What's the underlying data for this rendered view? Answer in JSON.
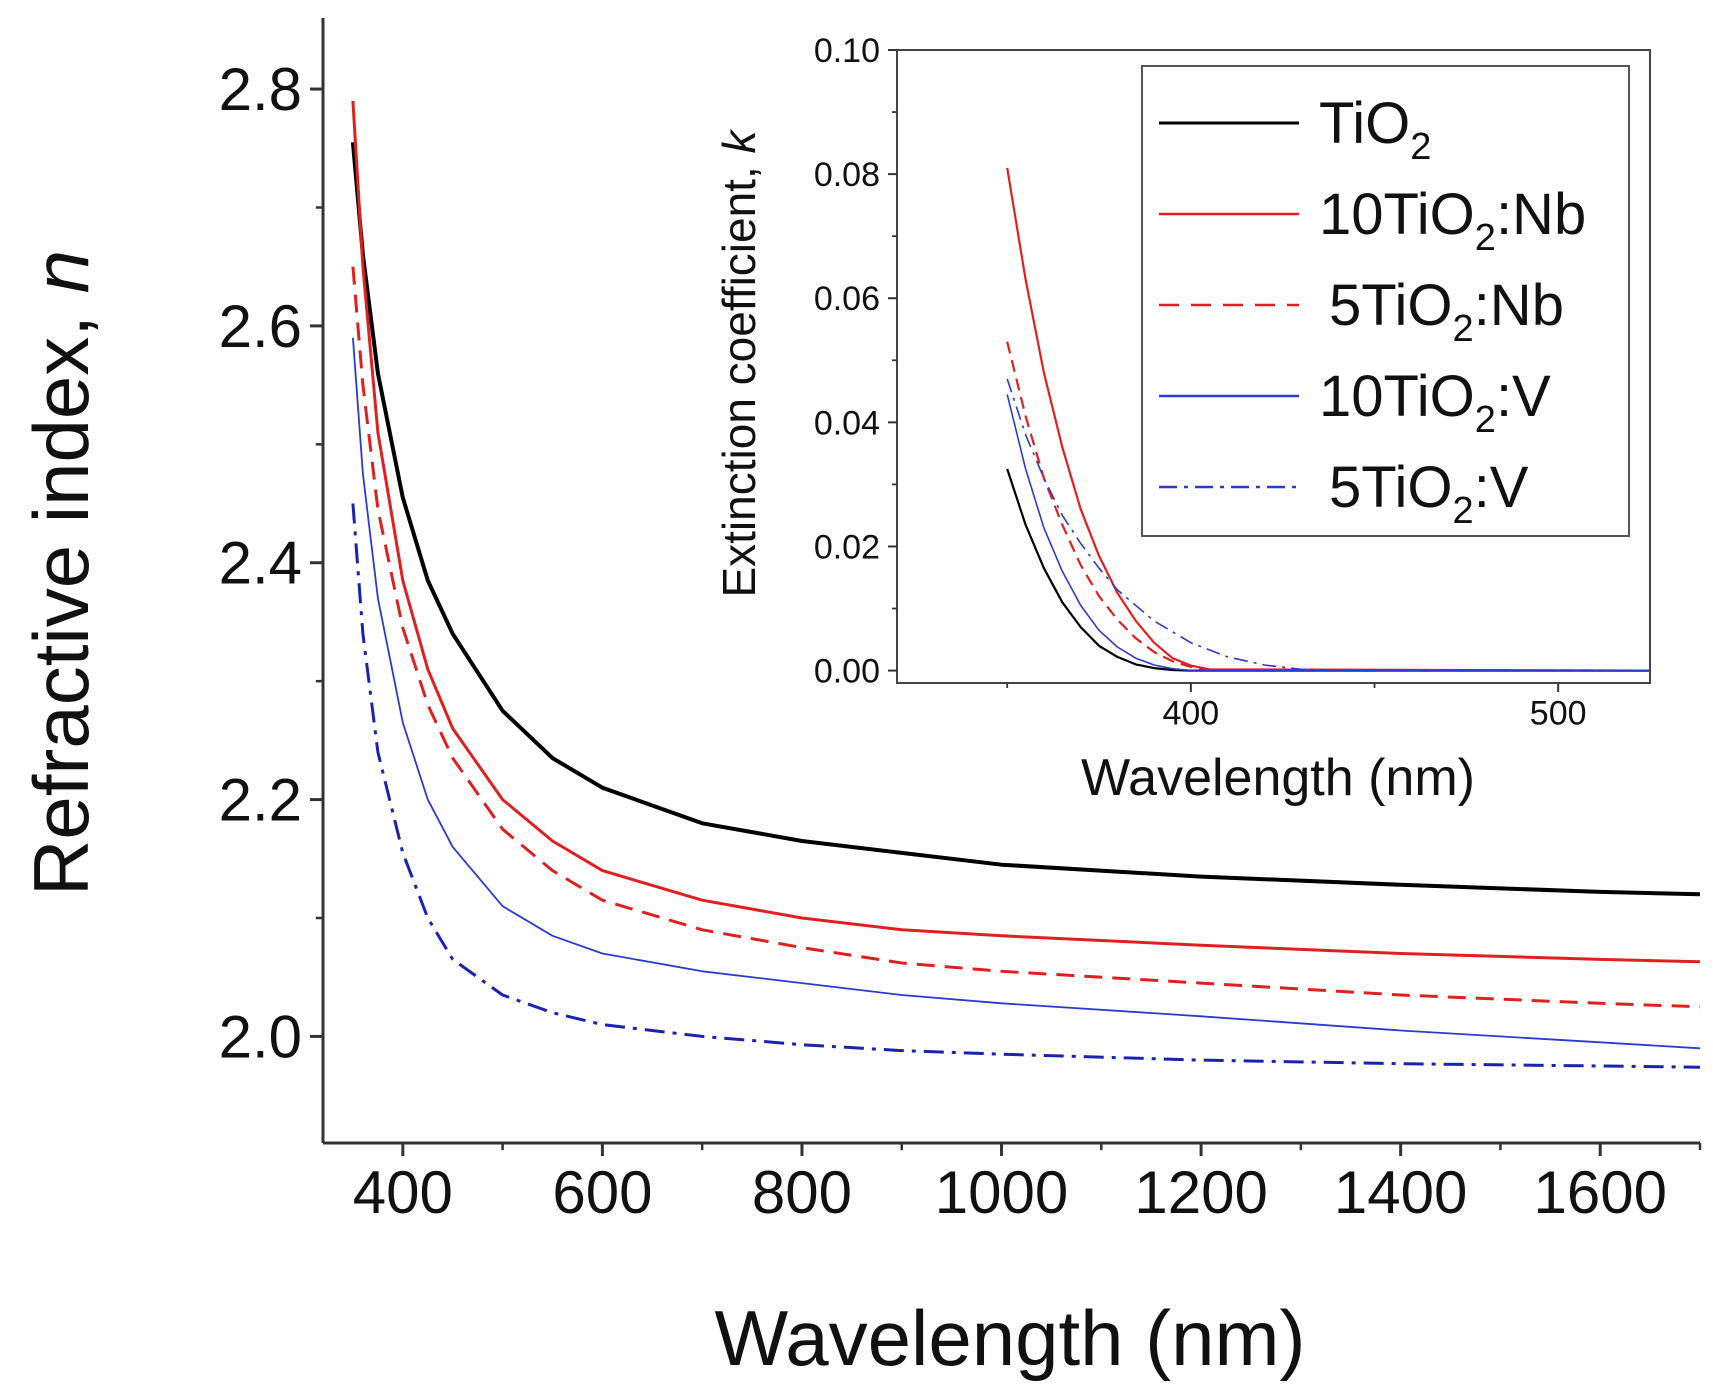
{
  "chart_data": [
    {
      "type": "line",
      "title": "",
      "xlabel": "Wavelength (nm)",
      "ylabel": "Refractive index, ",
      "ylabel_italic": "n",
      "xlim": [
        320,
        1700
      ],
      "ylim": [
        1.91,
        2.86
      ],
      "xticks": [
        400,
        600,
        800,
        1000,
        1200,
        1400,
        1600
      ],
      "yticks": [
        2.0,
        2.2,
        2.4,
        2.6,
        2.8
      ],
      "xtick_labels": [
        "400",
        "600",
        "800",
        "1000",
        "1200",
        "1400",
        "1600"
      ],
      "ytick_labels": [
        "2.0",
        "2.2",
        "2.4",
        "2.6",
        "2.8"
      ],
      "series": [
        {
          "name": "TiO2",
          "color": "#000000",
          "dash": "solid",
          "width": 4,
          "x": [
            350,
            360,
            375,
            400,
            425,
            450,
            500,
            550,
            600,
            700,
            800,
            900,
            1000,
            1200,
            1400,
            1600,
            1700
          ],
          "y": [
            2.755,
            2.66,
            2.56,
            2.455,
            2.385,
            2.34,
            2.275,
            2.235,
            2.21,
            2.18,
            2.165,
            2.155,
            2.145,
            2.135,
            2.128,
            2.122,
            2.12
          ]
        },
        {
          "name": "10TiO2:Nb",
          "color": "#e02020",
          "dash": "solid",
          "width": 3,
          "x": [
            350,
            360,
            375,
            400,
            425,
            450,
            500,
            550,
            600,
            700,
            800,
            900,
            1000,
            1200,
            1400,
            1600,
            1700
          ],
          "y": [
            2.79,
            2.65,
            2.51,
            2.385,
            2.31,
            2.26,
            2.2,
            2.165,
            2.14,
            2.115,
            2.1,
            2.09,
            2.085,
            2.077,
            2.07,
            2.065,
            2.063
          ]
        },
        {
          "name": "5TiO2:Nb",
          "color": "#e02020",
          "dash": "dashed",
          "width": 3,
          "x": [
            350,
            360,
            375,
            400,
            425,
            450,
            500,
            550,
            600,
            700,
            800,
            900,
            1000,
            1200,
            1400,
            1600,
            1700
          ],
          "y": [
            2.65,
            2.55,
            2.445,
            2.345,
            2.28,
            2.235,
            2.175,
            2.14,
            2.115,
            2.09,
            2.075,
            2.062,
            2.055,
            2.045,
            2.035,
            2.028,
            2.025
          ]
        },
        {
          "name": "10TiO2:V",
          "color": "#2b3bd0",
          "dash": "solid",
          "width": 1.8,
          "x": [
            350,
            360,
            375,
            400,
            425,
            450,
            500,
            550,
            600,
            700,
            800,
            900,
            1000,
            1200,
            1400,
            1600,
            1700
          ],
          "y": [
            2.59,
            2.475,
            2.37,
            2.265,
            2.2,
            2.16,
            2.11,
            2.085,
            2.07,
            2.055,
            2.045,
            2.035,
            2.028,
            2.017,
            2.005,
            1.995,
            1.99
          ]
        },
        {
          "name": "5TiO2:V",
          "color": "#1a22b0",
          "dash": "dashdot",
          "width": 3,
          "x": [
            350,
            360,
            375,
            400,
            425,
            450,
            500,
            550,
            600,
            700,
            800,
            900,
            1000,
            1200,
            1400,
            1600,
            1700
          ],
          "y": [
            2.45,
            2.34,
            2.24,
            2.155,
            2.1,
            2.065,
            2.035,
            2.02,
            2.01,
            2.0,
            1.993,
            1.988,
            1.985,
            1.98,
            1.977,
            1.975,
            1.974
          ]
        }
      ]
    },
    {
      "type": "line",
      "title": "inset",
      "xlabel": "Wavelength (nm)",
      "ylabel": "Extinction coefficient, ",
      "ylabel_italic": "k",
      "xlim": [
        320,
        525
      ],
      "ylim": [
        -0.002,
        0.1
      ],
      "xticks": [
        400,
        500
      ],
      "yticks": [
        0.0,
        0.02,
        0.04,
        0.06,
        0.08,
        0.1
      ],
      "xtick_labels": [
        "400",
        "500"
      ],
      "ytick_labels": [
        "0.00",
        "0.02",
        "0.04",
        "0.06",
        "0.08",
        "0.10"
      ],
      "legend_position": "top-right",
      "series": [
        {
          "name": "TiO2",
          "color": "#000000",
          "dash": "solid",
          "width": 2.2,
          "x": [
            350,
            355,
            360,
            365,
            370,
            375,
            380,
            385,
            390,
            395,
            400,
            525
          ],
          "y": [
            0.0325,
            0.0235,
            0.0165,
            0.011,
            0.007,
            0.004,
            0.0022,
            0.001,
            0.0004,
            0.0001,
            0.0,
            0.0
          ]
        },
        {
          "name": "10TiO2:Nb",
          "color": "#e02020",
          "dash": "solid",
          "width": 2.2,
          "x": [
            350,
            355,
            360,
            365,
            370,
            375,
            380,
            385,
            390,
            395,
            400,
            405,
            525
          ],
          "y": [
            0.081,
            0.063,
            0.048,
            0.036,
            0.026,
            0.0185,
            0.0125,
            0.008,
            0.0045,
            0.002,
            0.0008,
            0.0002,
            0.0
          ]
        },
        {
          "name": "5TiO2:Nb",
          "color": "#e02020",
          "dash": "dashed",
          "width": 2.2,
          "x": [
            350,
            355,
            360,
            365,
            370,
            375,
            380,
            385,
            390,
            395,
            400,
            405,
            525
          ],
          "y": [
            0.053,
            0.041,
            0.031,
            0.0235,
            0.017,
            0.012,
            0.0082,
            0.0052,
            0.003,
            0.0015,
            0.0006,
            0.0001,
            0.0
          ]
        },
        {
          "name": "10TiO2:V",
          "color": "#2b3bd0",
          "dash": "solid",
          "width": 1.6,
          "x": [
            350,
            355,
            360,
            365,
            370,
            375,
            380,
            385,
            390,
            395,
            400,
            525
          ],
          "y": [
            0.0445,
            0.0325,
            0.023,
            0.016,
            0.0105,
            0.0065,
            0.0038,
            0.002,
            0.0009,
            0.0003,
            0.0,
            0.0
          ]
        },
        {
          "name": "5TiO2:V",
          "color": "#2b3bd0",
          "dash": "dashdot",
          "width": 1.6,
          "x": [
            350,
            355,
            360,
            365,
            370,
            375,
            380,
            390,
            400,
            410,
            420,
            430,
            440,
            525
          ],
          "y": [
            0.047,
            0.038,
            0.031,
            0.025,
            0.0205,
            0.0165,
            0.013,
            0.008,
            0.0045,
            0.0022,
            0.0009,
            0.0002,
            0.0,
            0.0
          ]
        }
      ],
      "legend": [
        {
          "base": "TiO",
          "sub": "2",
          "tail": ""
        },
        {
          "base": "10TiO",
          "sub": "2",
          "tail": ":Nb"
        },
        {
          "base": "5TiO",
          "sub": "2",
          "tail": ":Nb"
        },
        {
          "base": "10TiO",
          "sub": "2",
          "tail": ":V"
        },
        {
          "base": "5TiO",
          "sub": "2",
          "tail": ":V"
        }
      ]
    }
  ]
}
